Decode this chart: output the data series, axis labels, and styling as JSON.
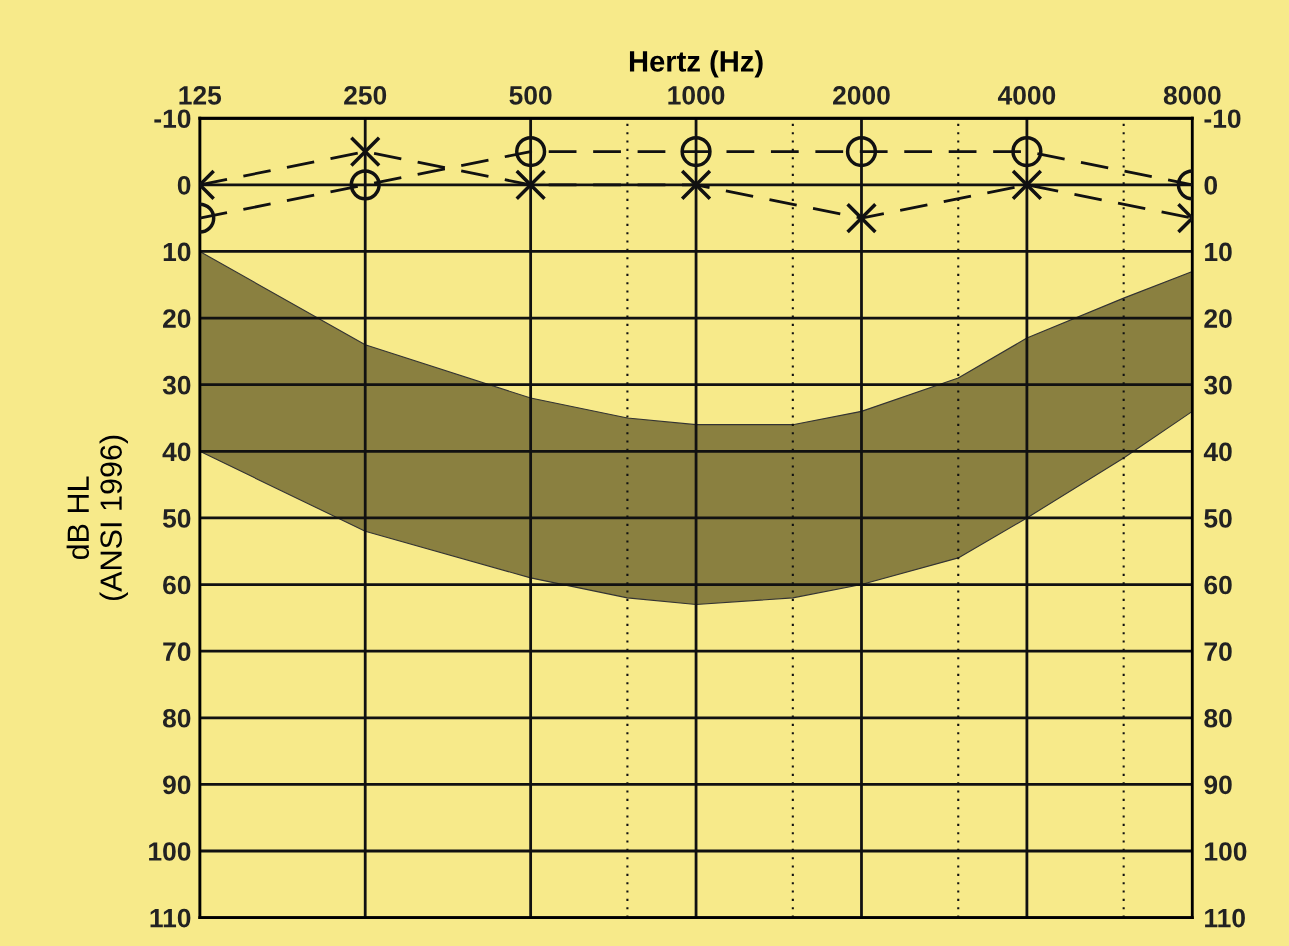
{
  "chart_data": {
    "type": "line",
    "xlabel": "Hertz (Hz)",
    "ylabel": "dB HL\n(ANSI 1996)",
    "x": [
      125,
      250,
      500,
      1000,
      2000,
      4000,
      8000
    ],
    "series": [
      {
        "type": "area",
        "color": "#8a8040",
        "x": [
          125,
          250,
          500,
          750,
          1000,
          1500,
          2000,
          3000,
          4000,
          6000,
          8000
        ],
        "values": [
          null,
          null,
          null,
          null,
          null,
          null,
          null,
          null,
          null,
          null,
          null
        ],
        "upper": [
          10,
          24,
          32,
          35,
          36,
          36,
          34,
          29,
          23,
          17,
          13
        ],
        "lower": [
          40,
          52,
          59,
          62,
          63,
          62,
          60,
          56,
          50,
          41,
          34
        ]
      },
      {
        "type": "line",
        "color": "#111111",
        "marker": "circle",
        "line_style": "dashed",
        "values": [
          5,
          0,
          -5,
          -5,
          -5,
          -5,
          0
        ]
      },
      {
        "type": "line",
        "color": "#111111",
        "marker": "cross",
        "line_style": "dashed",
        "values": [
          0,
          -5,
          0,
          0,
          5,
          0,
          5
        ]
      }
    ],
    "log": "x",
    "xlim": [
      125,
      8000
    ],
    "xticks": [
      125,
      250,
      500,
      {
        "value": 750,
        "label": null
      },
      1000,
      {
        "value": 1500,
        "label": null
      },
      2000,
      {
        "value": 3000,
        "label": null
      },
      4000,
      {
        "value": 6000,
        "label": null
      },
      8000
    ],
    "ylim": [
      110,
      -10
    ],
    "yticks": [
      -10,
      0,
      10,
      20,
      30,
      40,
      50,
      60,
      70,
      80,
      90,
      100,
      110
    ],
    "y2lim": [
      110,
      -10
    ],
    "y2ticks": [
      -10,
      0,
      10,
      20,
      30,
      40,
      50,
      60,
      70,
      80,
      90,
      100,
      110
    ],
    "grid": true
  }
}
